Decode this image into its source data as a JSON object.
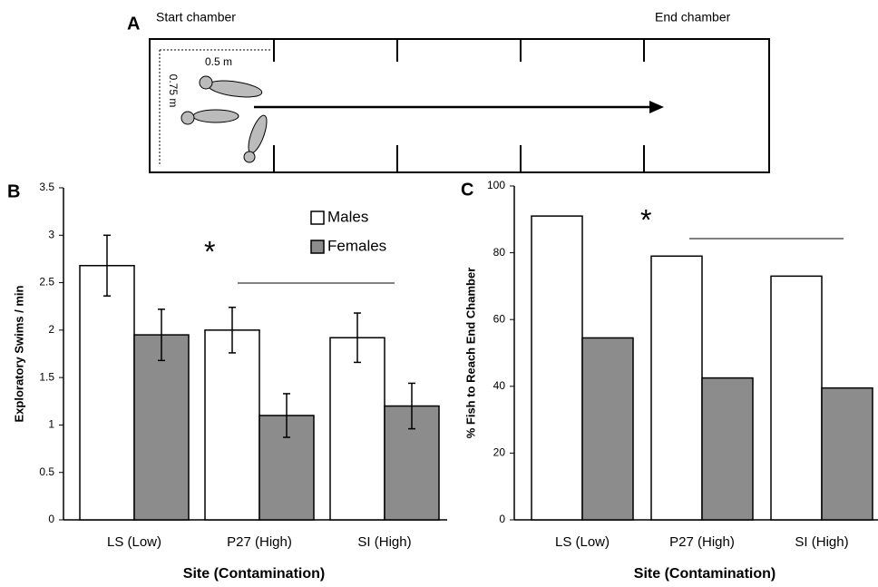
{
  "diagram": {
    "label": "A",
    "start": "Start chamber",
    "end": "End chamber",
    "width_label": "0.5 m",
    "height_label": "0.75 m"
  },
  "chart_data": [
    {
      "type": "bar",
      "panel_label": "B",
      "ylabel": "Exploratory Swims / min",
      "xlabel": "Site (Contamination)",
      "annotations": [
        "*"
      ],
      "categories": [
        "LS (Low)",
        "P27 (High)",
        "SI (High)"
      ],
      "series": [
        {
          "name": "Males",
          "color": "#ffffff",
          "values": [
            2.68,
            2.0,
            1.92
          ],
          "errors": [
            0.32,
            0.24,
            0.26
          ]
        },
        {
          "name": "Females",
          "color": "#8c8c8c",
          "values": [
            1.95,
            1.1,
            1.2
          ],
          "errors": [
            0.27,
            0.23,
            0.24
          ]
        }
      ],
      "ylim": [
        0,
        3.5
      ],
      "yticks": [
        0,
        0.5,
        1,
        1.5,
        2,
        2.5,
        3,
        3.5
      ],
      "legend": "upper right"
    },
    {
      "type": "bar",
      "panel_label": "C",
      "ylabel": "% Fish to Reach End Chamber",
      "xlabel": "Site (Contamination)",
      "annotations": [
        "*"
      ],
      "categories": [
        "LS (Low)",
        "P27 (High)",
        "SI (High)"
      ],
      "series": [
        {
          "color": "#ffffff",
          "values": [
            91,
            79,
            73
          ]
        },
        {
          "color": "#8c8c8c",
          "values": [
            54.5,
            42.5,
            39.5
          ]
        }
      ],
      "ylim": [
        0,
        100
      ],
      "yticks": [
        0,
        20,
        40,
        60,
        80,
        100
      ]
    }
  ]
}
